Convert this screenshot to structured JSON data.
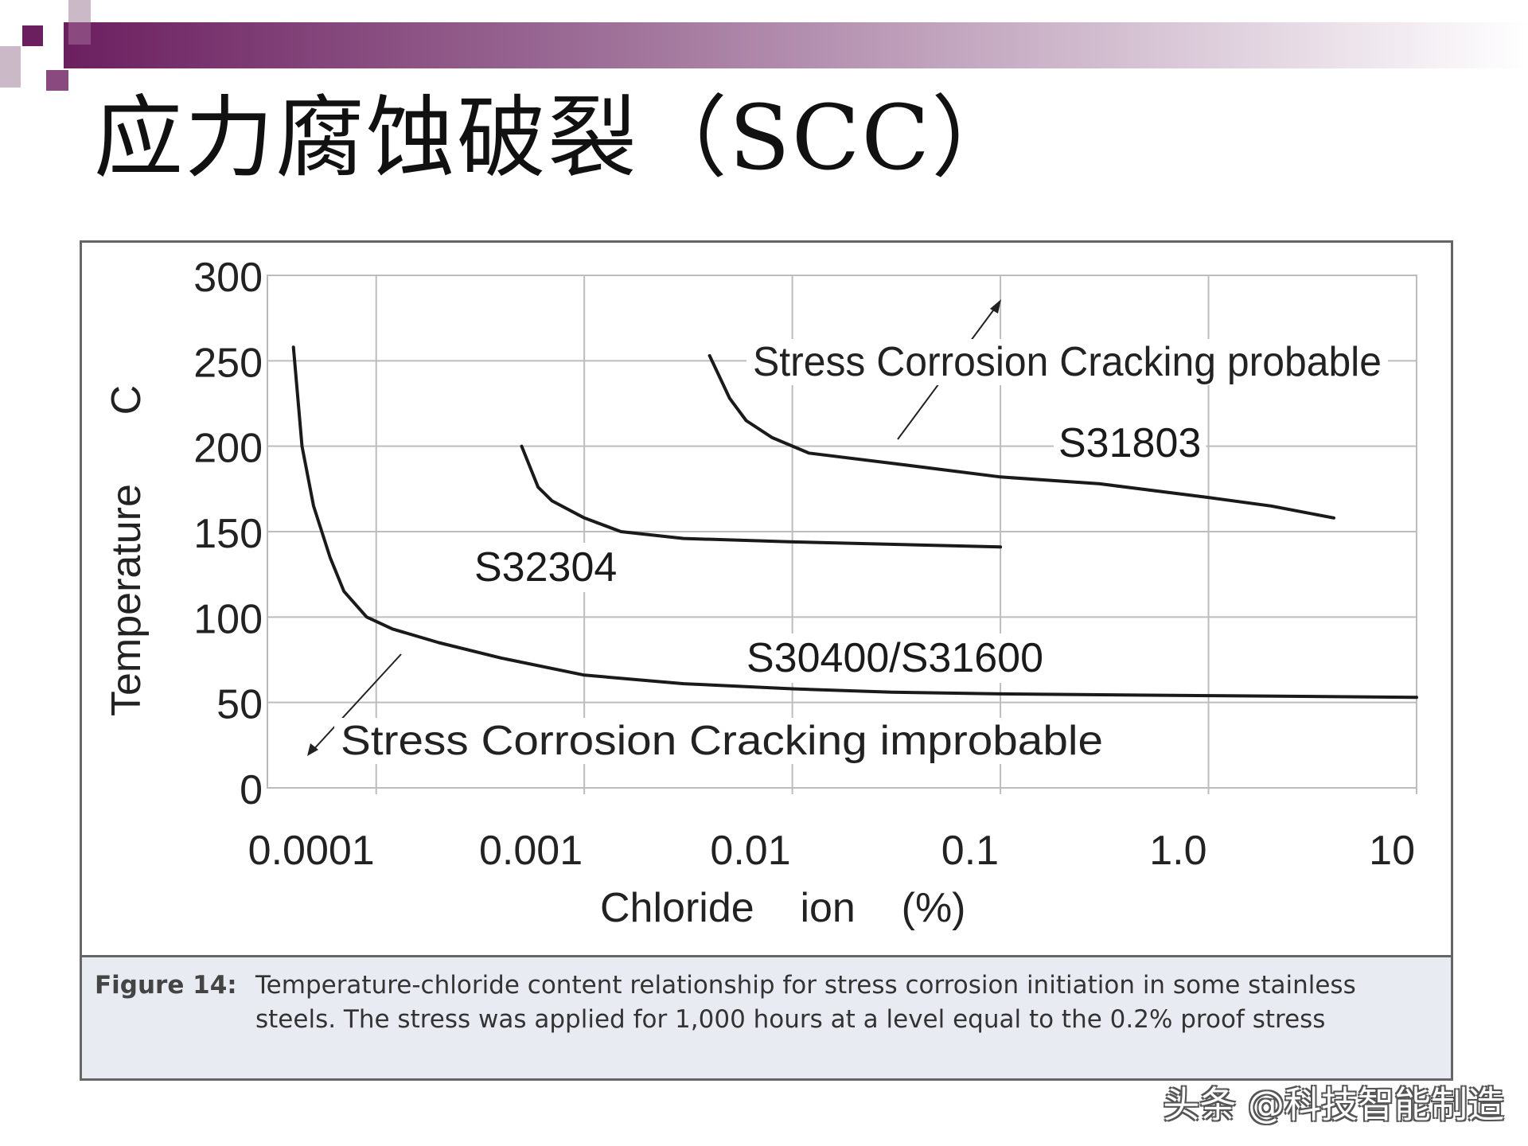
{
  "slide": {
    "title": "应力腐蚀破裂（SCC）",
    "accent_color": "#6b1f5f"
  },
  "chart_data": {
    "type": "line",
    "xscale": "log",
    "x_ticks": [
      "0.0001",
      "0.001",
      "0.01",
      "0.1",
      "1.0",
      "10"
    ],
    "y_ticks": [
      "0",
      "50",
      "100",
      "150",
      "200",
      "250",
      "300"
    ],
    "xlabel": "Chloride    ion    (%)",
    "ylabel": "Temperature      C",
    "xlim": [
      3e-05,
      10
    ],
    "ylim": [
      0,
      300
    ],
    "grid": true,
    "series": [
      {
        "name": "S30400/S31600",
        "x": [
          4e-05,
          4.4e-05,
          5e-05,
          6e-05,
          7e-05,
          9e-05,
          0.00012,
          0.0002,
          0.0004,
          0.001,
          0.003,
          0.01,
          0.03,
          0.1,
          1.0,
          10
        ],
        "y": [
          258,
          200,
          165,
          135,
          115,
          100,
          93,
          85,
          76,
          66,
          61,
          58,
          56,
          55,
          54,
          53
        ]
      },
      {
        "name": "S32304",
        "x": [
          0.0005,
          0.0006,
          0.0007,
          0.001,
          0.0015,
          0.003,
          0.01,
          0.1
        ],
        "y": [
          200,
          176,
          168,
          158,
          150,
          146,
          144,
          141
        ]
      },
      {
        "name": "S31803",
        "x": [
          0.004,
          0.005,
          0.006,
          0.008,
          0.012,
          0.03,
          0.1,
          0.3,
          1.0,
          2.0,
          4.0
        ],
        "y": [
          253,
          228,
          215,
          205,
          196,
          190,
          182,
          178,
          170,
          165,
          158
        ]
      }
    ],
    "annotations": [
      "Stress Corrosion Cracking probable",
      "Stress Corrosion Cracking improbable"
    ]
  },
  "caption": {
    "label": "Figure 14:",
    "text": "Temperature-chloride content relationship for stress corrosion initiation in some stainless steels. The stress was applied for 1,000 hours at a level equal to the 0.2% proof stress"
  },
  "watermark": "头条 @科技智能制造"
}
